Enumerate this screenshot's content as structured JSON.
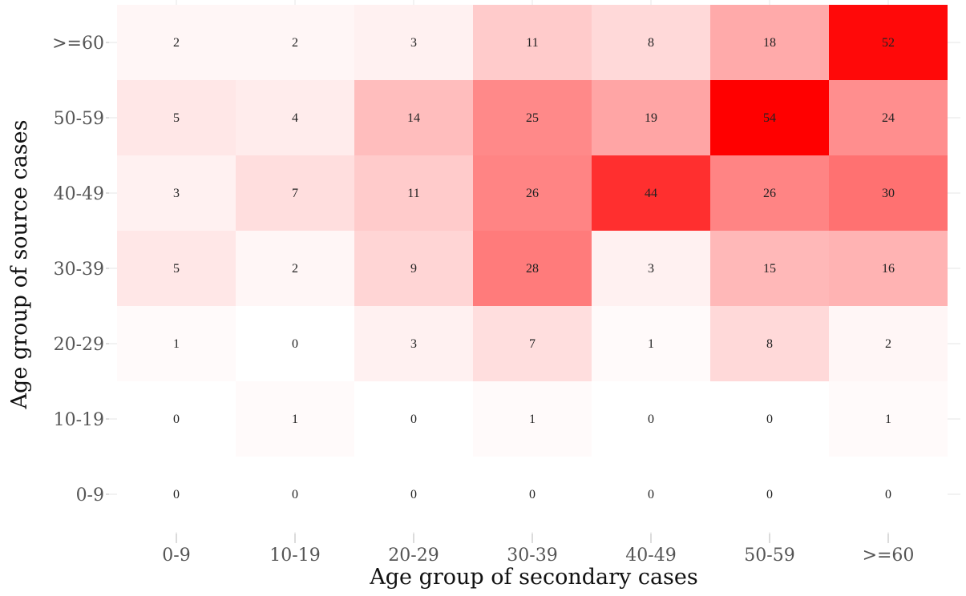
{
  "chart_data": {
    "type": "heatmap",
    "title": "",
    "xlabel": "Age group of secondary cases",
    "ylabel": "Age group of source cases",
    "x_categories": [
      "0-9",
      "10-19",
      "20-29",
      "30-39",
      "40-49",
      "50-59",
      ">=60"
    ],
    "y_categories": [
      "0-9",
      "10-19",
      "20-29",
      "30-39",
      "40-49",
      "50-59",
      ">=60"
    ],
    "values_by_source_row": [
      {
        "source": ">=60",
        "values": [
          2,
          2,
          3,
          11,
          8,
          18,
          52
        ]
      },
      {
        "source": "50-59",
        "values": [
          5,
          4,
          14,
          25,
          19,
          54,
          24
        ]
      },
      {
        "source": "40-49",
        "values": [
          3,
          7,
          11,
          26,
          44,
          26,
          30
        ]
      },
      {
        "source": "30-39",
        "values": [
          5,
          2,
          9,
          28,
          3,
          15,
          16
        ]
      },
      {
        "source": "20-29",
        "values": [
          1,
          0,
          3,
          7,
          1,
          8,
          2
        ]
      },
      {
        "source": "10-19",
        "values": [
          0,
          1,
          0,
          1,
          0,
          0,
          1
        ]
      },
      {
        "source": "0-9",
        "values": [
          0,
          0,
          0,
          0,
          0,
          0,
          0
        ]
      }
    ],
    "color_scale": {
      "low": "#ffffff",
      "high": "#ff0000",
      "min": 0,
      "max": 54
    },
    "grid": true,
    "legend": "none"
  }
}
